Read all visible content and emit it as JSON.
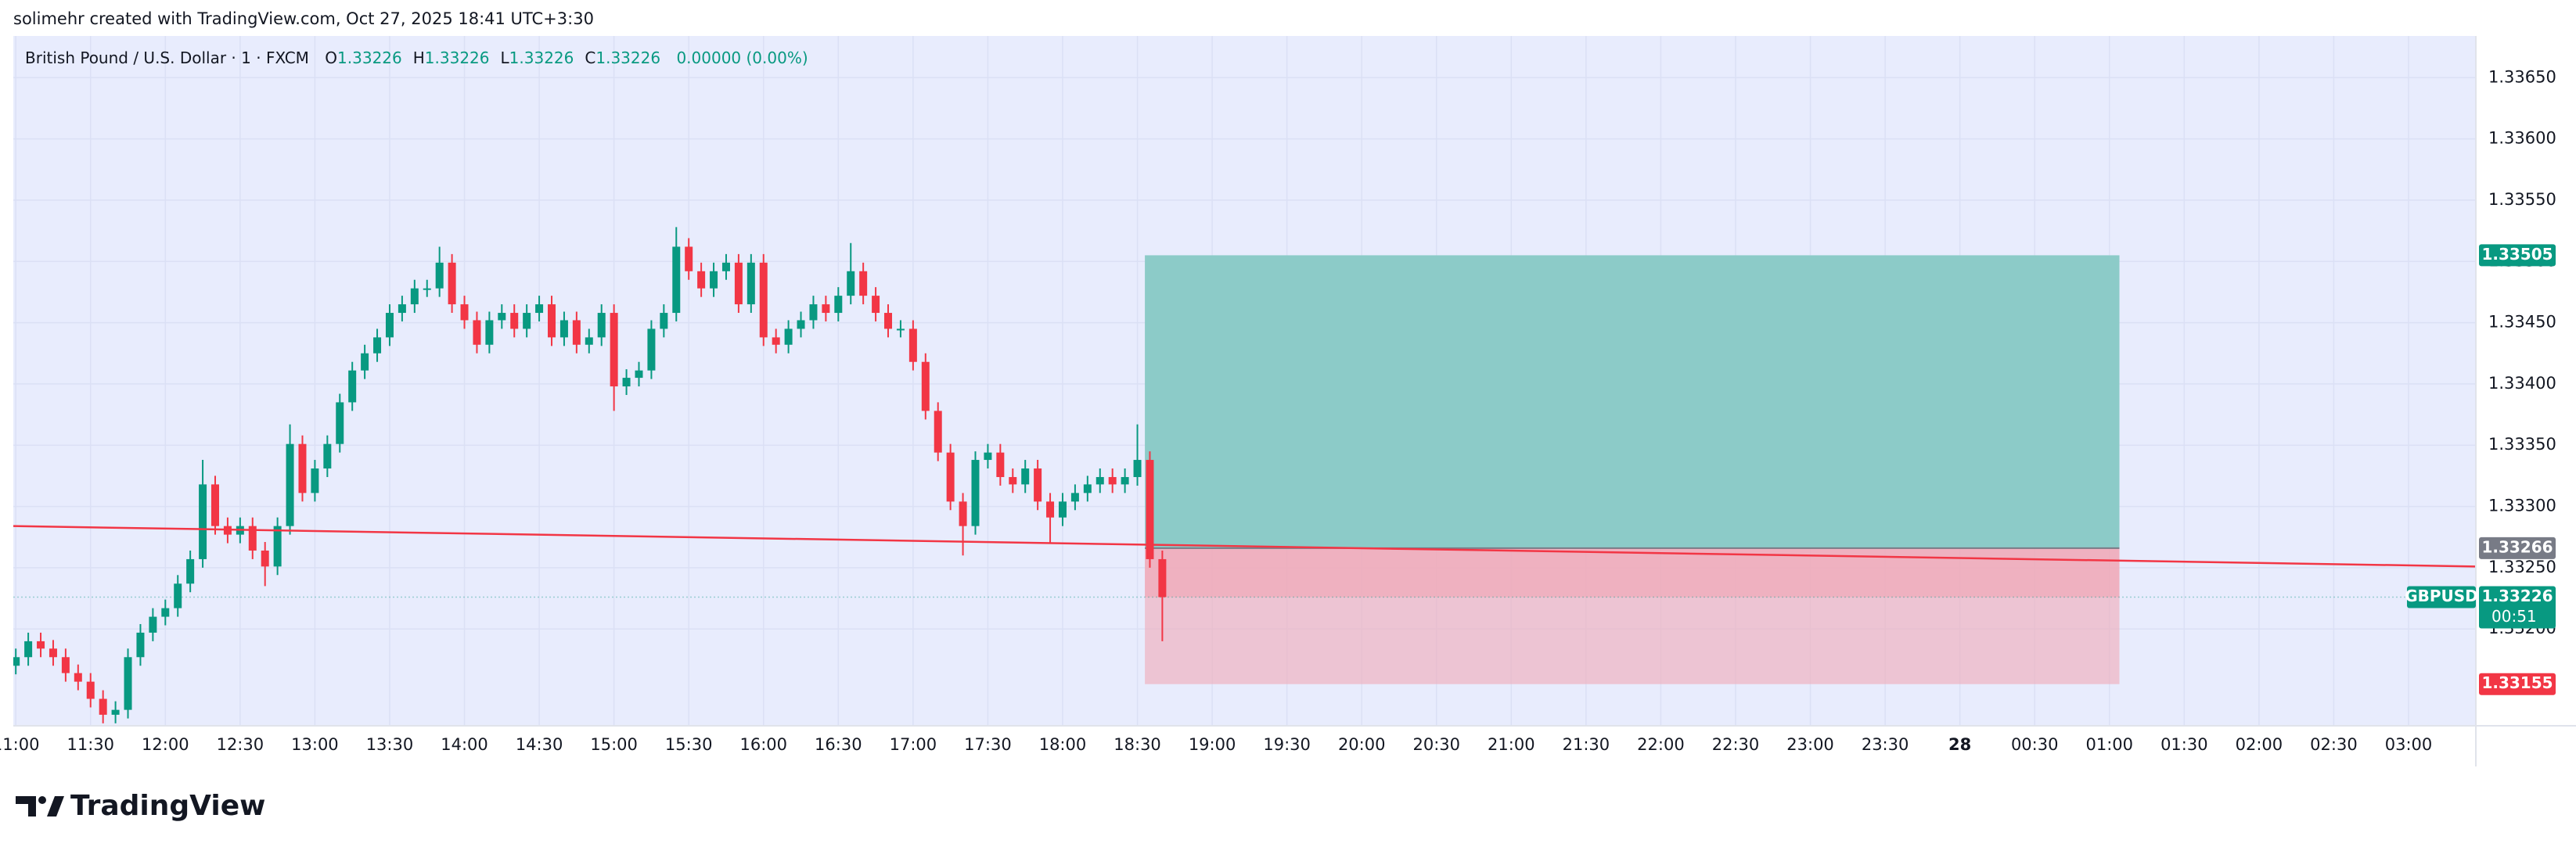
{
  "header": {
    "caption": "solimehr created with TradingView.com, Oct 27, 2025 18:41 UTC+3:30"
  },
  "legend": {
    "symbol": "British Pound / U.S. Dollar · 1 · FXCM",
    "ohlc": [
      {
        "label": "O",
        "value": "1.33226"
      },
      {
        "label": "H",
        "value": "1.33226"
      },
      {
        "label": "L",
        "value": "1.33226"
      },
      {
        "label": "C",
        "value": "1.33226"
      }
    ],
    "change": "0.00000 (0.00%)"
  },
  "chart_data": {
    "type": "candlestick",
    "x": [
      "11:00",
      "11:05",
      "11:10",
      "11:15",
      "11:20",
      "11:25",
      "11:30",
      "11:35",
      "11:40",
      "11:45",
      "11:50",
      "11:55",
      "12:00",
      "12:05",
      "12:10",
      "12:15",
      "12:20",
      "12:25",
      "12:30",
      "12:35",
      "12:40",
      "12:45",
      "12:50",
      "12:55",
      "13:00",
      "13:05",
      "13:10",
      "13:15",
      "13:20",
      "13:25",
      "13:30",
      "13:35",
      "13:40",
      "13:45",
      "13:50",
      "13:55",
      "14:00",
      "14:05",
      "14:10",
      "14:15",
      "14:20",
      "14:25",
      "14:30",
      "14:35",
      "14:40",
      "14:45",
      "14:50",
      "14:55",
      "15:00",
      "15:05",
      "15:10",
      "15:15",
      "15:20",
      "15:25",
      "15:30",
      "15:35",
      "15:40",
      "15:45",
      "15:50",
      "15:55",
      "16:00",
      "16:05",
      "16:10",
      "16:15",
      "16:20",
      "16:25",
      "16:30",
      "16:35",
      "16:40",
      "16:45",
      "16:50",
      "16:55",
      "17:00",
      "17:05",
      "17:10",
      "17:15",
      "17:20",
      "17:25",
      "17:30",
      "17:35",
      "17:40",
      "17:45",
      "17:50",
      "17:55",
      "18:00",
      "18:05",
      "18:10",
      "18:15",
      "18:20",
      "18:25",
      "18:30",
      "18:35",
      "18:40"
    ],
    "open": [
      1.3317,
      1.33177,
      1.3319,
      1.33184,
      1.33177,
      1.33164,
      1.33157,
      1.33143,
      1.3313,
      1.33134,
      1.33177,
      1.33197,
      1.3321,
      1.33217,
      1.33237,
      1.33257,
      1.33318,
      1.33284,
      1.33277,
      1.33284,
      1.33264,
      1.33251,
      1.33284,
      1.33351,
      1.33311,
      1.33331,
      1.33351,
      1.33385,
      1.33411,
      1.33425,
      1.33438,
      1.33458,
      1.33465,
      1.33478,
      1.33478,
      1.33499,
      1.33465,
      1.33452,
      1.33432,
      1.33452,
      1.33458,
      1.33445,
      1.33458,
      1.33465,
      1.33438,
      1.33452,
      1.33432,
      1.33438,
      1.33458,
      1.33398,
      1.33405,
      1.33411,
      1.33445,
      1.33458,
      1.33512,
      1.33492,
      1.33478,
      1.33492,
      1.33499,
      1.33465,
      1.33499,
      1.33438,
      1.33432,
      1.33445,
      1.33452,
      1.33465,
      1.33458,
      1.33472,
      1.33492,
      1.33472,
      1.33458,
      1.33445,
      1.33445,
      1.33418,
      1.33378,
      1.33344,
      1.33304,
      1.33284,
      1.33338,
      1.33344,
      1.33324,
      1.33318,
      1.33331,
      1.33304,
      1.33291,
      1.33304,
      1.33311,
      1.33318,
      1.33324,
      1.33318,
      1.33324,
      1.33338,
      1.33257
    ],
    "high": [
      1.33184,
      1.33197,
      1.33197,
      1.33191,
      1.33184,
      1.33171,
      1.33164,
      1.3315,
      1.33141,
      1.33184,
      1.33204,
      1.33217,
      1.33224,
      1.33244,
      1.33264,
      1.33338,
      1.33325,
      1.33291,
      1.33291,
      1.33291,
      1.33271,
      1.33291,
      1.33367,
      1.33358,
      1.33338,
      1.33358,
      1.33392,
      1.33418,
      1.33432,
      1.33445,
      1.33465,
      1.33472,
      1.33485,
      1.33485,
      1.33512,
      1.33506,
      1.33472,
      1.33459,
      1.33459,
      1.33465,
      1.33465,
      1.33465,
      1.33472,
      1.33472,
      1.33459,
      1.33459,
      1.33445,
      1.33465,
      1.33465,
      1.33412,
      1.33418,
      1.33452,
      1.33465,
      1.33528,
      1.33519,
      1.33499,
      1.33499,
      1.33506,
      1.33506,
      1.33506,
      1.33506,
      1.33445,
      1.33452,
      1.33459,
      1.33472,
      1.33472,
      1.33479,
      1.33515,
      1.33499,
      1.33479,
      1.33465,
      1.33452,
      1.33452,
      1.33425,
      1.33385,
      1.33351,
      1.33311,
      1.33345,
      1.33351,
      1.33351,
      1.33331,
      1.33338,
      1.33338,
      1.33311,
      1.33311,
      1.33318,
      1.33325,
      1.33331,
      1.33331,
      1.33331,
      1.33367,
      1.33345,
      1.33264
    ],
    "low": [
      1.33163,
      1.3317,
      1.33177,
      1.3317,
      1.33157,
      1.3315,
      1.33136,
      1.33123,
      1.33123,
      1.33127,
      1.3317,
      1.3319,
      1.33203,
      1.3321,
      1.3323,
      1.3325,
      1.33277,
      1.3327,
      1.3327,
      1.33257,
      1.33235,
      1.33244,
      1.33277,
      1.33304,
      1.33304,
      1.33324,
      1.33344,
      1.33378,
      1.33404,
      1.33418,
      1.33431,
      1.33451,
      1.33458,
      1.33471,
      1.33471,
      1.33458,
      1.33445,
      1.33425,
      1.33425,
      1.33445,
      1.33438,
      1.33438,
      1.33451,
      1.33431,
      1.33431,
      1.33425,
      1.33425,
      1.33431,
      1.33378,
      1.33391,
      1.33398,
      1.33404,
      1.33438,
      1.33451,
      1.33485,
      1.33471,
      1.33471,
      1.33485,
      1.33458,
      1.33458,
      1.33431,
      1.33425,
      1.33425,
      1.33438,
      1.33445,
      1.33451,
      1.33451,
      1.33465,
      1.33465,
      1.33451,
      1.33438,
      1.33438,
      1.33411,
      1.33371,
      1.33337,
      1.33297,
      1.3326,
      1.33277,
      1.33331,
      1.33317,
      1.33311,
      1.33311,
      1.33297,
      1.3327,
      1.33284,
      1.33297,
      1.33304,
      1.33311,
      1.33311,
      1.33311,
      1.33317,
      1.3325,
      1.3319
    ],
    "close": [
      1.33177,
      1.3319,
      1.33184,
      1.33177,
      1.33164,
      1.33157,
      1.33143,
      1.3313,
      1.33134,
      1.33177,
      1.33197,
      1.3321,
      1.33217,
      1.33237,
      1.33257,
      1.33318,
      1.33284,
      1.33277,
      1.33284,
      1.33264,
      1.33251,
      1.33284,
      1.33351,
      1.33311,
      1.33331,
      1.33351,
      1.33385,
      1.33411,
      1.33425,
      1.33438,
      1.33458,
      1.33465,
      1.33478,
      1.33478,
      1.33499,
      1.33465,
      1.33452,
      1.33432,
      1.33452,
      1.33458,
      1.33445,
      1.33458,
      1.33465,
      1.33438,
      1.33452,
      1.33432,
      1.33438,
      1.33458,
      1.33398,
      1.33405,
      1.33411,
      1.33445,
      1.33458,
      1.33512,
      1.33492,
      1.33478,
      1.33492,
      1.33499,
      1.33465,
      1.33499,
      1.33438,
      1.33432,
      1.33445,
      1.33452,
      1.33465,
      1.33458,
      1.33472,
      1.33492,
      1.33472,
      1.33458,
      1.33445,
      1.33445,
      1.33418,
      1.33378,
      1.33344,
      1.33304,
      1.33284,
      1.33338,
      1.33344,
      1.33324,
      1.33318,
      1.33331,
      1.33304,
      1.33291,
      1.33304,
      1.33311,
      1.33318,
      1.33324,
      1.33318,
      1.33324,
      1.33338,
      1.33257,
      1.33226
    ],
    "up_color": "#089981",
    "down_color": "#f23645",
    "xlim": [
      659,
      1647
    ],
    "xticks": [
      {
        "value": 660,
        "label": "11:00"
      },
      {
        "value": 690,
        "label": "11:30"
      },
      {
        "value": 720,
        "label": "12:00"
      },
      {
        "value": 750,
        "label": "12:30"
      },
      {
        "value": 780,
        "label": "13:00"
      },
      {
        "value": 810,
        "label": "13:30"
      },
      {
        "value": 840,
        "label": "14:00"
      },
      {
        "value": 870,
        "label": "14:30"
      },
      {
        "value": 900,
        "label": "15:00"
      },
      {
        "value": 930,
        "label": "15:30"
      },
      {
        "value": 960,
        "label": "16:00"
      },
      {
        "value": 990,
        "label": "16:30"
      },
      {
        "value": 1020,
        "label": "17:00"
      },
      {
        "value": 1050,
        "label": "17:30"
      },
      {
        "value": 1080,
        "label": "18:00"
      },
      {
        "value": 1110,
        "label": "18:30"
      },
      {
        "value": 1140,
        "label": "19:00"
      },
      {
        "value": 1170,
        "label": "19:30"
      },
      {
        "value": 1200,
        "label": "20:00"
      },
      {
        "value": 1230,
        "label": "20:30"
      },
      {
        "value": 1260,
        "label": "21:00"
      },
      {
        "value": 1290,
        "label": "21:30"
      },
      {
        "value": 1320,
        "label": "22:00"
      },
      {
        "value": 1350,
        "label": "22:30"
      },
      {
        "value": 1380,
        "label": "23:00"
      },
      {
        "value": 1410,
        "label": "23:30"
      },
      {
        "value": 1440,
        "label": "28"
      },
      {
        "value": 1470,
        "label": "00:30"
      },
      {
        "value": 1500,
        "label": "01:00"
      },
      {
        "value": 1530,
        "label": "01:30"
      },
      {
        "value": 1560,
        "label": "02:00"
      },
      {
        "value": 1590,
        "label": "02:30"
      },
      {
        "value": 1620,
        "label": "03:00"
      }
    ],
    "ylim": [
      1.33121,
      1.33684
    ],
    "yticks": [
      {
        "value": 1.332,
        "label": "1.33200"
      },
      {
        "value": 1.3325,
        "label": "1.33250"
      },
      {
        "value": 1.333,
        "label": "1.33300"
      },
      {
        "value": 1.3335,
        "label": "1.33350"
      },
      {
        "value": 1.334,
        "label": "1.33400"
      },
      {
        "value": 1.3345,
        "label": "1.33450"
      },
      {
        "value": 1.335,
        "label": "1.33500"
      },
      {
        "value": 1.3355,
        "label": "1.33550"
      },
      {
        "value": 1.336,
        "label": "1.33600"
      },
      {
        "value": 1.3365,
        "label": "1.33650"
      }
    ],
    "grid": true,
    "position": {
      "start": 1113,
      "end": 1504,
      "entry": 1.33266,
      "target": 1.33505,
      "stop": 1.33155,
      "profit_color": "#8ccbc8",
      "loss_color": "#f0aab8"
    },
    "trendline": {
      "x": [
        659,
        1647
      ],
      "y": [
        1.33284,
        1.33251
      ],
      "color": "#f23645"
    },
    "last_price": 1.33226,
    "symbol": "GBPUSD",
    "countdown": "00:51"
  },
  "footer": {
    "brand": "TradingView"
  }
}
